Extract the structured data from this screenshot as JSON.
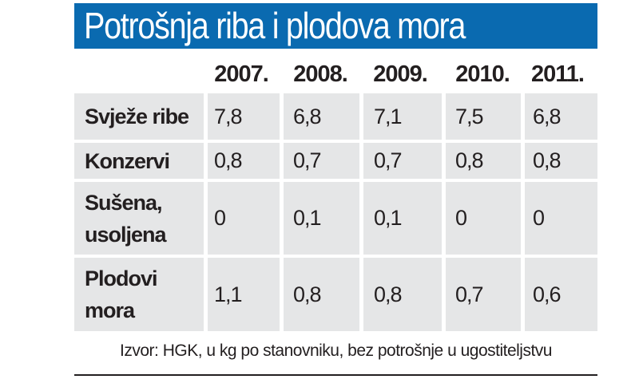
{
  "chart_data": {
    "type": "table",
    "title": "Potrošnja riba i plodova mora",
    "columns": [
      "2007.",
      "2008.",
      "2009.",
      "2010.",
      "2011."
    ],
    "rows": [
      {
        "label": "Svježe ribe",
        "values": [
          "7,8",
          "6,8",
          "7,1",
          "7,5",
          "6,8"
        ]
      },
      {
        "label": "Konzervi",
        "values": [
          "0,8",
          "0,7",
          "0,7",
          "0,8",
          "0,8"
        ]
      },
      {
        "label": "Sušena, usoljena",
        "values": [
          "0",
          "0,1",
          "0,1",
          "0",
          "0"
        ]
      },
      {
        "label": "Plodovi mora",
        "values": [
          "1,1",
          "0,8",
          "0,8",
          "0,7",
          "0,6"
        ]
      }
    ],
    "source": "Izvor: HGK, u kg po stanovniku, bez potrošnje u ugostiteljstvu"
  },
  "colors": {
    "title_background": "#0a6ab0",
    "title_text": "#ffffff",
    "row_band": "#e5e6e7",
    "text": "#231f20"
  }
}
